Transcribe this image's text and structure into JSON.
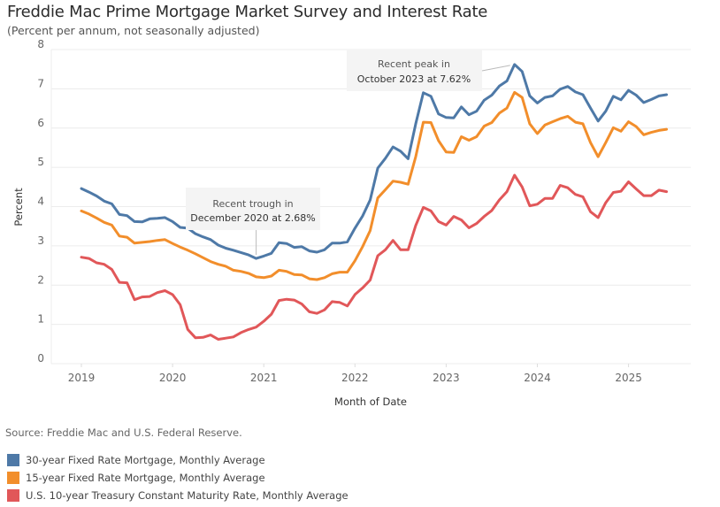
{
  "title": "Freddie Mac Prime Mortgage Market Survey and Interest Rate",
  "subtitle": "(Percent per annum, not seasonally adjusted)",
  "source": "Source: Freddie Mac and U.S. Federal Reserve.",
  "legend": [
    {
      "label": "30-year Fixed Rate Mortgage, Monthly Average",
      "color": "#4e79a7"
    },
    {
      "label": "15-year Fixed Rate Mortgage, Monthly Average",
      "color": "#f28e2b"
    },
    {
      "label": "U.S. 10-year Treasury Constant Maturity Rate, Monthly Average",
      "color": "#e15759"
    }
  ],
  "annotations": {
    "peak": {
      "line1": "Recent peak in",
      "line2": "October 2023 at 7.62%",
      "x_month_index": 57,
      "value": 7.62
    },
    "trough": {
      "line1": "Recent trough in",
      "line2": "December 2020 at 2.68%",
      "x_month_index": 23,
      "value": 2.68
    }
  },
  "chart_data": {
    "type": "line",
    "title": "Freddie Mac Prime Mortgage Market Survey and Interest Rate",
    "subtitle": "(Percent per annum, not seasonally adjusted)",
    "xlabel": "Month of Date",
    "ylabel": "Percent",
    "ylim": [
      0,
      8
    ],
    "yticks": [
      "0",
      "1",
      "2",
      "3",
      "4",
      "5",
      "6",
      "7",
      "8"
    ],
    "xticks": [
      "2019",
      "2020",
      "2021",
      "2022",
      "2023",
      "2024",
      "2025"
    ],
    "x_start": "2019-01",
    "x_end": "2025-06",
    "grid": true,
    "legend_position": "bottom-left",
    "series": [
      {
        "name": "30-year Fixed Rate Mortgage, Monthly Average",
        "color": "#4e79a7",
        "values": [
          4.46,
          4.37,
          4.27,
          4.14,
          4.07,
          3.8,
          3.77,
          3.62,
          3.61,
          3.69,
          3.7,
          3.72,
          3.62,
          3.47,
          3.45,
          3.31,
          3.23,
          3.16,
          3.02,
          2.94,
          2.89,
          2.83,
          2.77,
          2.68,
          2.74,
          2.81,
          3.08,
          3.06,
          2.96,
          2.98,
          2.87,
          2.84,
          2.9,
          3.07,
          3.07,
          3.1,
          3.45,
          3.76,
          4.17,
          4.98,
          5.23,
          5.52,
          5.41,
          5.22,
          6.11,
          6.9,
          6.81,
          6.36,
          6.27,
          6.26,
          6.54,
          6.34,
          6.43,
          6.71,
          6.84,
          7.07,
          7.2,
          7.62,
          7.44,
          6.82,
          6.64,
          6.78,
          6.82,
          6.99,
          7.06,
          6.92,
          6.85,
          6.51,
          6.18,
          6.43,
          6.81,
          6.72,
          6.96,
          6.84,
          6.65,
          6.73,
          6.82,
          6.85
        ]
      },
      {
        "name": "15-year Fixed Rate Mortgage, Monthly Average",
        "color": "#f28e2b",
        "values": [
          3.89,
          3.81,
          3.71,
          3.6,
          3.53,
          3.25,
          3.22,
          3.07,
          3.09,
          3.11,
          3.14,
          3.16,
          3.06,
          2.97,
          2.89,
          2.8,
          2.7,
          2.6,
          2.53,
          2.48,
          2.38,
          2.35,
          2.3,
          2.21,
          2.19,
          2.23,
          2.38,
          2.35,
          2.27,
          2.26,
          2.16,
          2.14,
          2.19,
          2.29,
          2.33,
          2.33,
          2.62,
          2.98,
          3.39,
          4.22,
          4.43,
          4.65,
          4.62,
          4.57,
          5.27,
          6.15,
          6.14,
          5.68,
          5.39,
          5.38,
          5.78,
          5.69,
          5.78,
          6.05,
          6.14,
          6.38,
          6.51,
          6.91,
          6.78,
          6.11,
          5.86,
          6.08,
          6.16,
          6.24,
          6.3,
          6.15,
          6.11,
          5.63,
          5.27,
          5.63,
          6.01,
          5.92,
          6.16,
          6.04,
          5.83,
          5.89,
          5.94,
          5.97
        ]
      },
      {
        "name": "U.S. 10-year Treasury Constant Maturity Rate, Monthly Average",
        "color": "#e15759",
        "values": [
          2.71,
          2.68,
          2.57,
          2.53,
          2.4,
          2.07,
          2.06,
          1.63,
          1.7,
          1.71,
          1.81,
          1.86,
          1.76,
          1.5,
          0.87,
          0.66,
          0.67,
          0.73,
          0.62,
          0.65,
          0.68,
          0.79,
          0.87,
          0.93,
          1.08,
          1.26,
          1.61,
          1.64,
          1.62,
          1.52,
          1.32,
          1.28,
          1.37,
          1.58,
          1.56,
          1.47,
          1.76,
          1.93,
          2.13,
          2.75,
          2.9,
          3.14,
          2.9,
          2.9,
          3.52,
          3.98,
          3.89,
          3.62,
          3.53,
          3.75,
          3.66,
          3.46,
          3.57,
          3.75,
          3.9,
          4.17,
          4.38,
          4.8,
          4.5,
          4.02,
          4.06,
          4.21,
          4.21,
          4.54,
          4.48,
          4.31,
          4.25,
          3.87,
          3.72,
          4.1,
          4.36,
          4.39,
          4.63,
          4.45,
          4.28,
          4.28,
          4.42,
          4.38
        ]
      }
    ]
  }
}
